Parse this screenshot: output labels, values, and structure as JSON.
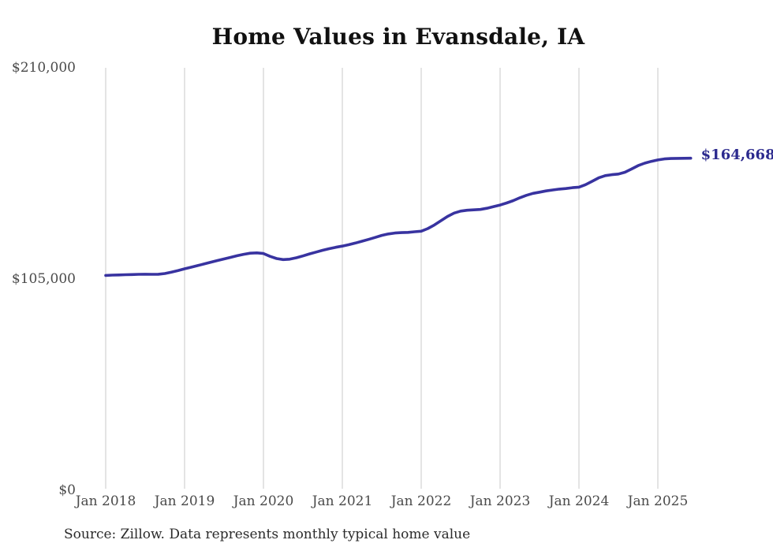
{
  "chart_data": {
    "type": "line",
    "title": "Home Values in Evansdale, IA",
    "end_label": "$164,668",
    "final_value": 164668,
    "x_start": "Jan 2018",
    "x_end": "Jun 2025",
    "x_interval": "monthly",
    "ylim": [
      0,
      210000
    ],
    "grid": "vertical-only",
    "legend": "none",
    "line_color": "#3833a0",
    "label_color": "#2c2a8e",
    "grid_color": "#c9c9c9",
    "tick_color": "#4a4a4a",
    "y_ticks": [
      {
        "label": "$0",
        "value": 0
      },
      {
        "label": "$105,000",
        "value": 105000
      },
      {
        "label": "$210,000",
        "value": 210000
      }
    ],
    "x_ticks": [
      {
        "label": "Jan 2018",
        "month_index": 0
      },
      {
        "label": "Jan 2019",
        "month_index": 12
      },
      {
        "label": "Jan 2020",
        "month_index": 24
      },
      {
        "label": "Jan 2021",
        "month_index": 36
      },
      {
        "label": "Jan 2022",
        "month_index": 48
      },
      {
        "label": "Jan 2023",
        "month_index": 60
      },
      {
        "label": "Jan 2024",
        "month_index": 72
      },
      {
        "label": "Jan 2025",
        "month_index": 84
      }
    ],
    "values": [
      106400,
      106550,
      106650,
      106750,
      106850,
      106950,
      107000,
      106950,
      107000,
      107350,
      108050,
      108850,
      109700,
      110500,
      111300,
      112150,
      113000,
      113800,
      114600,
      115400,
      116200,
      116900,
      117450,
      117600,
      117300,
      115900,
      114800,
      114300,
      114500,
      115200,
      116100,
      117100,
      118000,
      118900,
      119700,
      120400,
      121000,
      121700,
      122500,
      123400,
      124300,
      125300,
      126300,
      127000,
      127500,
      127700,
      127800,
      128100,
      128400,
      129700,
      131500,
      133600,
      135700,
      137400,
      138400,
      138800,
      139000,
      139200,
      139800,
      140600,
      141400,
      142400,
      143600,
      145000,
      146200,
      147200,
      147800,
      148400,
      148900,
      149300,
      149600,
      150000,
      150300,
      151500,
      153200,
      154900,
      156000,
      156500,
      156800,
      157700,
      159300,
      161000,
      162200,
      163100,
      163800,
      164300,
      164500,
      164600,
      164650,
      164668
    ]
  },
  "source_note": "Source: Zillow. Data represents monthly typical home value"
}
